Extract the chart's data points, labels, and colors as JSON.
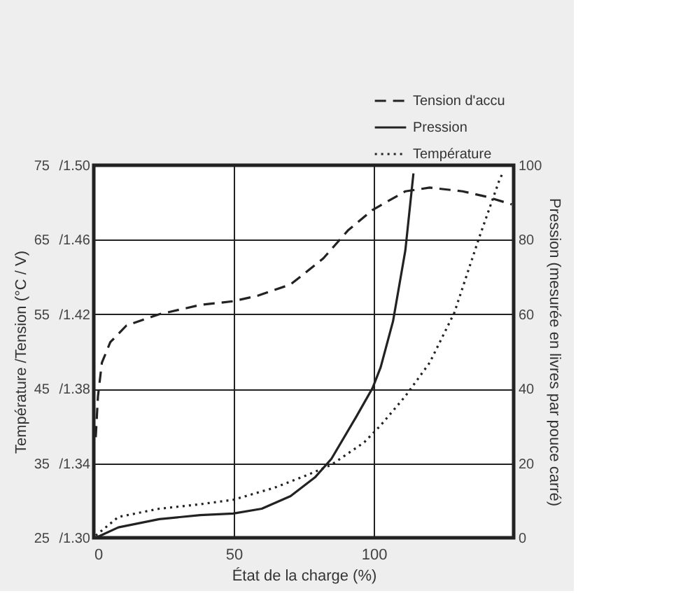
{
  "chart_data": {
    "type": "line",
    "xlabel": "État de la charge (%)",
    "ylabel": "Température /Tension (°C / V)",
    "y2label": "Pression (mesurée en livres par pouce carré)",
    "xlim": [
      0,
      150
    ],
    "xticks": [
      0,
      50,
      100
    ],
    "ylim": [
      25,
      75
    ],
    "yticks": [
      25,
      35,
      45,
      55,
      65,
      75
    ],
    "y3lim": [
      1.3,
      1.5
    ],
    "y3ticks": [
      {
        "value": 1.3,
        "label": "/1.30"
      },
      {
        "value": 1.34,
        "label": "/1.34"
      },
      {
        "value": 1.38,
        "label": "/1.38"
      },
      {
        "value": 1.42,
        "label": "/1.42"
      },
      {
        "value": 1.46,
        "label": "/1.46"
      },
      {
        "value": 1.5,
        "label": "/1.50"
      }
    ],
    "y2lim": [
      0,
      100
    ],
    "y2ticks": [
      0,
      20,
      40,
      60,
      80,
      100
    ],
    "grid": true,
    "legend": "top right",
    "marker": "none",
    "series": [
      {
        "name": "Tension d'accu",
        "color": "#222222",
        "line_style": "dashed",
        "axis": "y3",
        "x": [
          0.7,
          1.5,
          2.9,
          5.9,
          11.7,
          23.4,
          38,
          49.8,
          58.6,
          70.3,
          82,
          90.8,
          99.6,
          111.3,
          120,
          131.8,
          140.6,
          149.3
        ],
        "values": [
          1.354,
          1.376,
          1.394,
          1.405,
          1.414,
          1.42,
          1.425,
          1.427,
          1.43,
          1.436,
          1.45,
          1.465,
          1.476,
          1.486,
          1.488,
          1.486,
          1.483,
          1.479
        ]
      },
      {
        "name": "Pression",
        "color": "#222222",
        "line_style": "solid",
        "axis": "y2",
        "x": [
          0.7,
          8.8,
          23.4,
          38,
          49.8,
          60,
          70.3,
          79,
          84.9,
          93.7,
          99.6,
          102.5,
          106.9,
          111.3,
          114.2
        ],
        "values": [
          0,
          2.8,
          5,
          6.1,
          6.5,
          7.8,
          11.2,
          16.2,
          21.2,
          32.4,
          40.2,
          45.8,
          58.1,
          77.1,
          97.8
        ]
      },
      {
        "name": "Température",
        "color": "#222222",
        "line_style": "dotted",
        "x": [
          0.7,
          8.8,
          23.4,
          38,
          49.8,
          64.4,
          76.1,
          84.9,
          96.6,
          102.5,
          111.3,
          120,
          128.8,
          137.6,
          144.9,
          146.4
        ],
        "values": [
          25.3,
          27.8,
          28.9,
          29.5,
          30.1,
          31.7,
          33.4,
          34.8,
          37.8,
          40.1,
          44,
          48.5,
          55.2,
          65.2,
          73,
          74.2
        ]
      }
    ]
  }
}
